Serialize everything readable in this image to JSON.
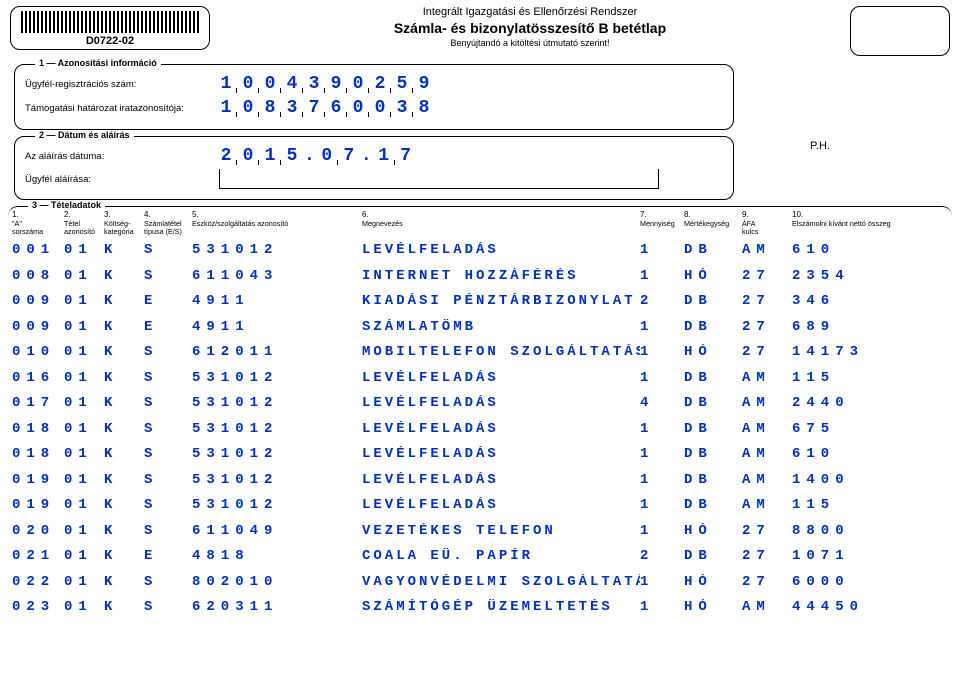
{
  "barcode_label": "D0722-02",
  "header": {
    "line1": "Integrált Igazgatási és Ellenőrzési Rendszer",
    "line2": "Számla- és bizonylatösszesítő B betétlap",
    "line3": "Benyújtandó a kitöltési útmutató szerint!"
  },
  "ph_label": "P.H.",
  "section1": {
    "legend": "1 — Azonosítási információ",
    "reg_label": "Ügyfél-regisztrációs szám:",
    "reg_value": "1004390259",
    "doc_label": "Támogatási határozat iratazonosítója:",
    "doc_value": "1083760038"
  },
  "section2": {
    "legend": "2 — Dátum és aláírás",
    "date_label": "Az aláírás dátuma:",
    "date_y": "2015",
    "date_m": "07",
    "date_d": "17",
    "sign_label": "Ügyfél aláírása:"
  },
  "table": {
    "legend": "3 — Tételadatok",
    "columns": [
      {
        "num": "1.",
        "l1": "\"A\"",
        "l2": "sorszáma"
      },
      {
        "num": "2.",
        "l1": "Tétel",
        "l2": "azonosító"
      },
      {
        "num": "3.",
        "l1": "Költség-",
        "l2": "kategória"
      },
      {
        "num": "4.",
        "l1": "Számlatétel",
        "l2": "típusa (E/S)"
      },
      {
        "num": "5.",
        "l1": "Eszköz/szolgáltatás azonosító",
        "l2": ""
      },
      {
        "num": "6.",
        "l1": "Megnevezés",
        "l2": ""
      },
      {
        "num": "7.",
        "l1": "Mennyiség",
        "l2": ""
      },
      {
        "num": "8.",
        "l1": "Mértékegység",
        "l2": ""
      },
      {
        "num": "9.",
        "l1": "ÁFA",
        "l2": "kulcs"
      },
      {
        "num": "10.",
        "l1": "Elszámolni kívánt nettó összeg",
        "l2": ""
      }
    ],
    "mono_color": "#0030c0",
    "rows": [
      {
        "c1": "001",
        "c2": "01",
        "c3": "K",
        "c4": "S",
        "c5": "531012",
        "c6": "LEVÉLFELADÁS",
        "c7": "1",
        "c8": "DB",
        "c9": "AM",
        "c10": "610"
      },
      {
        "c1": "008",
        "c2": "01",
        "c3": "K",
        "c4": "S",
        "c5": "611043",
        "c6": "INTERNET HOZZÁFÉRÉS",
        "c7": "1",
        "c8": "HÓ",
        "c9": "27",
        "c10": "2354"
      },
      {
        "c1": "009",
        "c2": "01",
        "c3": "K",
        "c4": "E",
        "c5": "4911",
        "c6": "KIADÁSI PÉNZTÁRBIZONYLAT",
        "c7": "2",
        "c8": "DB",
        "c9": "27",
        "c10": "346"
      },
      {
        "c1": "009",
        "c2": "01",
        "c3": "K",
        "c4": "E",
        "c5": "4911",
        "c6": "SZÁMLATÖMB",
        "c7": "1",
        "c8": "DB",
        "c9": "27",
        "c10": "689"
      },
      {
        "c1": "010",
        "c2": "01",
        "c3": "K",
        "c4": "S",
        "c5": "612011",
        "c6": "MOBILTELEFON SZOLGÁLTATÁS",
        "c7": "1",
        "c8": "HÓ",
        "c9": "27",
        "c10": "14173"
      },
      {
        "c1": "016",
        "c2": "01",
        "c3": "K",
        "c4": "S",
        "c5": "531012",
        "c6": "LEVÉLFELADÁS",
        "c7": "1",
        "c8": "DB",
        "c9": "AM",
        "c10": "115"
      },
      {
        "c1": "017",
        "c2": "01",
        "c3": "K",
        "c4": "S",
        "c5": "531012",
        "c6": "LEVÉLFELADÁS",
        "c7": "4",
        "c8": "DB",
        "c9": "AM",
        "c10": "2440"
      },
      {
        "c1": "018",
        "c2": "01",
        "c3": "K",
        "c4": "S",
        "c5": "531012",
        "c6": "LEVÉLFELADÁS",
        "c7": "1",
        "c8": "DB",
        "c9": "AM",
        "c10": "675"
      },
      {
        "c1": "018",
        "c2": "01",
        "c3": "K",
        "c4": "S",
        "c5": "531012",
        "c6": "LEVÉLFELADÁS",
        "c7": "1",
        "c8": "DB",
        "c9": "AM",
        "c10": "610"
      },
      {
        "c1": "019",
        "c2": "01",
        "c3": "K",
        "c4": "S",
        "c5": "531012",
        "c6": "LEVÉLFELADÁS",
        "c7": "1",
        "c8": "DB",
        "c9": "AM",
        "c10": "1400"
      },
      {
        "c1": "019",
        "c2": "01",
        "c3": "K",
        "c4": "S",
        "c5": "531012",
        "c6": "LEVÉLFELADÁS",
        "c7": "1",
        "c8": "DB",
        "c9": "AM",
        "c10": "115"
      },
      {
        "c1": "020",
        "c2": "01",
        "c3": "K",
        "c4": "S",
        "c5": "611049",
        "c6": "VEZETÉKES TELEFON",
        "c7": "1",
        "c8": "HÓ",
        "c9": "27",
        "c10": "8800"
      },
      {
        "c1": "021",
        "c2": "01",
        "c3": "K",
        "c4": "E",
        "c5": "4818",
        "c6": "COALA EÜ. PAPÍR",
        "c7": "2",
        "c8": "DB",
        "c9": "27",
        "c10": "1071"
      },
      {
        "c1": "022",
        "c2": "01",
        "c3": "K",
        "c4": "S",
        "c5": "802010",
        "c6": "VAGYONVÉDELMI SZOLGÁLTATÁS",
        "c7": "1",
        "c8": "HÓ",
        "c9": "27",
        "c10": "6000"
      },
      {
        "c1": "023",
        "c2": "01",
        "c3": "K",
        "c4": "S",
        "c5": "620311",
        "c6": "SZÁMÍTÓGÉP ÜZEMELTETÉS",
        "c7": "1",
        "c8": "HÓ",
        "c9": "AM",
        "c10": "44450"
      }
    ]
  }
}
